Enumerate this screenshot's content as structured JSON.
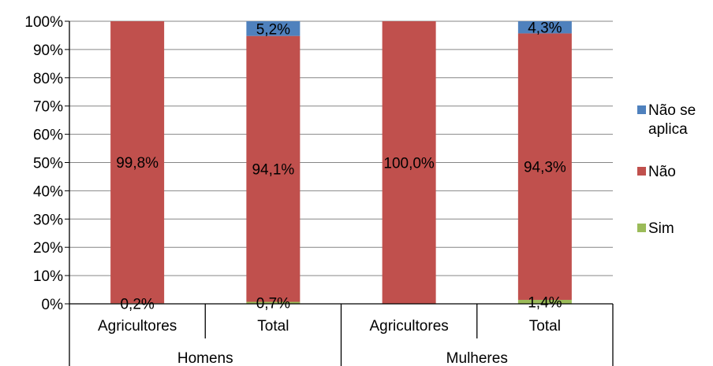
{
  "chart_data": {
    "type": "bar",
    "stacked": true,
    "percent_stacked": true,
    "categories": [
      "Agricultores",
      "Total",
      "Agricultores",
      "Total"
    ],
    "groups": [
      {
        "label": "Homens",
        "categories": [
          "Agricultores",
          "Total"
        ]
      },
      {
        "label": "Mulheres",
        "categories": [
          "Agricultores",
          "Total"
        ]
      }
    ],
    "series": [
      {
        "name": "Sim",
        "color": "#9BBB59",
        "values": [
          0.2,
          0.7,
          0.0,
          1.4
        ],
        "labels": [
          "0,2%",
          "0,7%",
          "",
          "1,4%"
        ]
      },
      {
        "name": "Não",
        "color": "#C0504D",
        "values": [
          99.8,
          94.1,
          100.0,
          94.3
        ],
        "labels": [
          "99,8%",
          "94,1%",
          "100,0%",
          "94,3%"
        ]
      },
      {
        "name": "Não se aplica",
        "color": "#4F81BD",
        "values": [
          0.0,
          5.2,
          0.0,
          4.3
        ],
        "labels": [
          "",
          "5,2%",
          "",
          "4,3%"
        ]
      }
    ],
    "y_ticks": [
      "0%",
      "10%",
      "20%",
      "30%",
      "40%",
      "50%",
      "60%",
      "70%",
      "80%",
      "90%",
      "100%"
    ],
    "ylim": [
      0,
      100
    ],
    "grid": true,
    "legend": {
      "position": "right",
      "order": [
        "Não se aplica",
        "Não",
        "Sim"
      ],
      "entries": [
        {
          "series": "Não se aplica",
          "lines": [
            "Não se",
            "aplica"
          ],
          "color": "#4F81BD"
        },
        {
          "series": "Não",
          "lines": [
            "Não"
          ],
          "color": "#C0504D"
        },
        {
          "series": "Sim",
          "lines": [
            "Sim"
          ],
          "color": "#9BBB59"
        }
      ]
    }
  }
}
